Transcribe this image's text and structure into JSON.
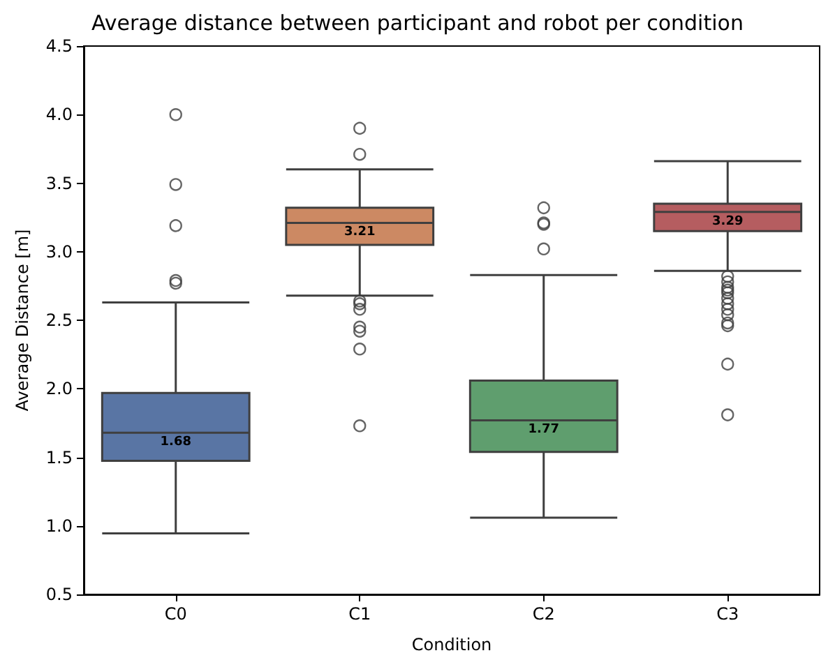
{
  "chart_data": {
    "type": "box",
    "title": "Average distance between participant and robot per condition",
    "xlabel": "Condition",
    "ylabel": "Average Distance [m]",
    "categories": [
      "C0",
      "C1",
      "C2",
      "C3"
    ],
    "colors": [
      "#5975a4",
      "#cc8963",
      "#5f9e6e",
      "#b55d60"
    ],
    "boxes": [
      {
        "low": 0.945,
        "q1": 1.475,
        "median": 1.68,
        "q3": 1.97,
        "high": 2.63,
        "outliers": [
          4.0,
          3.49,
          3.19,
          2.79,
          2.77
        ]
      },
      {
        "low": 2.68,
        "q1": 3.05,
        "median": 3.21,
        "q3": 3.32,
        "high": 3.6,
        "outliers": [
          3.9,
          3.71,
          2.64,
          2.62,
          2.58,
          2.45,
          2.42,
          2.29,
          1.73
        ]
      },
      {
        "low": 1.06,
        "q1": 1.54,
        "median": 1.77,
        "q3": 2.06,
        "high": 2.83,
        "outliers": [
          3.32,
          3.21,
          3.2,
          3.02
        ]
      },
      {
        "low": 2.86,
        "q1": 3.15,
        "median": 3.29,
        "q3": 3.35,
        "high": 3.66,
        "outliers": [
          2.82,
          2.78,
          2.74,
          2.72,
          2.7,
          2.66,
          2.62,
          2.58,
          2.54,
          2.48,
          2.46,
          2.18,
          1.81
        ]
      }
    ],
    "ylim": [
      0.5,
      4.5
    ],
    "yticks": [
      0.5,
      {
        "value": 1,
        "label": "1.0"
      },
      1.5,
      {
        "value": 2,
        "label": "2.0"
      },
      2.5,
      {
        "value": 3,
        "label": "3.0"
      },
      3.5,
      {
        "value": 4,
        "label": "4.0"
      },
      4.5
    ],
    "annotations": [
      {
        "text": "1.68",
        "x": "C0",
        "y": 1.68
      },
      {
        "text": "3.21",
        "x": "C1",
        "y": 3.21
      },
      {
        "text": "1.77",
        "x": "C2",
        "y": 1.77
      },
      {
        "text": "3.29",
        "x": "C3",
        "y": 3.29
      }
    ],
    "grid": false
  }
}
